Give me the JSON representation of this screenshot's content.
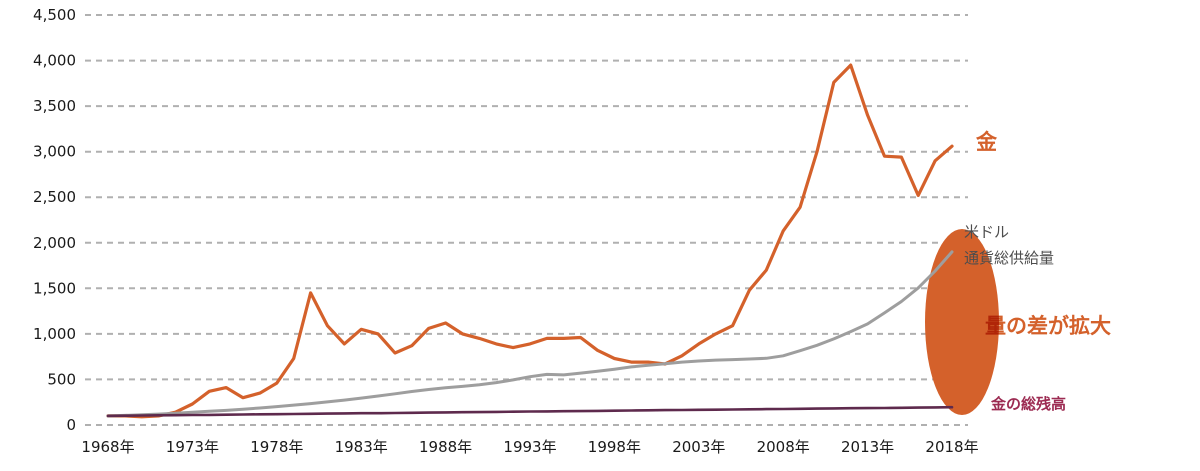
{
  "chart_data": {
    "type": "line",
    "title": "",
    "xlabel": "",
    "ylabel": "",
    "xlim": [
      1968,
      2018
    ],
    "ylim": [
      0,
      4500
    ],
    "grid": "horizontal-dashed",
    "legend_position": "right-edge-annotations",
    "x_ticks": [
      1968,
      1973,
      1978,
      1983,
      1988,
      1993,
      1998,
      2003,
      2008,
      2013,
      2018
    ],
    "x_tick_labels": [
      "1968年",
      "1973年",
      "1978年",
      "1983年",
      "1988年",
      "1993年",
      "1998年",
      "2003年",
      "2008年",
      "2013年",
      "2018年"
    ],
    "y_ticks": [
      0,
      500,
      1000,
      1500,
      2000,
      2500,
      3000,
      3500,
      4000,
      4500
    ],
    "y_tick_labels": [
      "0",
      "500",
      "1,000",
      "1,500",
      "2,000",
      "2,500",
      "3,000",
      "3,500",
      "4,000",
      "4,500"
    ],
    "x": [
      1968,
      1969,
      1970,
      1971,
      1972,
      1973,
      1974,
      1975,
      1976,
      1977,
      1978,
      1979,
      1980,
      1981,
      1982,
      1983,
      1984,
      1985,
      1986,
      1987,
      1988,
      1989,
      1990,
      1991,
      1992,
      1993,
      1994,
      1995,
      1996,
      1997,
      1998,
      1999,
      2000,
      2001,
      2002,
      2003,
      2004,
      2005,
      2006,
      2007,
      2008,
      2009,
      2010,
      2011,
      2012,
      2013,
      2014,
      2015,
      2016,
      2017,
      2018
    ],
    "series": [
      {
        "key": "gold",
        "name": "金",
        "color": "#d4612b",
        "values": [
          100,
          100,
          90,
          100,
          140,
          230,
          370,
          410,
          300,
          350,
          460,
          730,
          1450,
          1090,
          890,
          1050,
          1000,
          790,
          870,
          1060,
          1120,
          1000,
          950,
          890,
          850,
          890,
          950,
          950,
          960,
          820,
          730,
          690,
          690,
          670,
          760,
          890,
          1000,
          1090,
          1480,
          1700,
          2130,
          2390,
          3000,
          3760,
          3950,
          3400,
          2950,
          2940,
          2520,
          2900,
          3060
        ]
      },
      {
        "key": "usd-money-supply",
        "name": "米ドル通貨総供給量",
        "color": "#9e9e9e",
        "values": [
          100,
          105,
          112,
          120,
          130,
          140,
          150,
          160,
          173,
          187,
          202,
          218,
          235,
          253,
          273,
          295,
          318,
          342,
          368,
          390,
          408,
          424,
          442,
          465,
          495,
          530,
          555,
          550,
          570,
          590,
          612,
          638,
          655,
          672,
          690,
          702,
          712,
          718,
          724,
          732,
          760,
          815,
          875,
          945,
          1025,
          1110,
          1230,
          1355,
          1505,
          1690,
          1900
        ]
      },
      {
        "key": "gold-balance",
        "name": "金の総残高",
        "color": "#5e2a4d",
        "values": [
          100,
          102,
          104,
          106,
          108,
          110,
          111,
          113,
          115,
          117,
          119,
          121,
          123,
          125,
          127,
          129,
          130,
          132,
          134,
          136,
          138,
          140,
          142,
          144,
          146,
          148,
          149,
          151,
          153,
          155,
          157,
          159,
          161,
          163,
          165,
          167,
          168,
          170,
          172,
          174,
          176,
          178,
          180,
          182,
          184,
          186,
          187,
          189,
          191,
          193,
          195
        ]
      }
    ]
  },
  "annotations": {
    "gold_label": "金",
    "usd_label_line1": "米ドル",
    "usd_label_line2": "通貨総供給量",
    "gap_label": "量の差が拡大",
    "gold_balance_label": "金の総残高",
    "highlight_color": "#d4612b",
    "balance_label_color": "#9c2b52",
    "usd_label_color": "#4d4d4d"
  },
  "style": {
    "background": "#ffffff",
    "grid_color": "#b0b0b0",
    "axis_text_color": "#1a1a1a"
  }
}
